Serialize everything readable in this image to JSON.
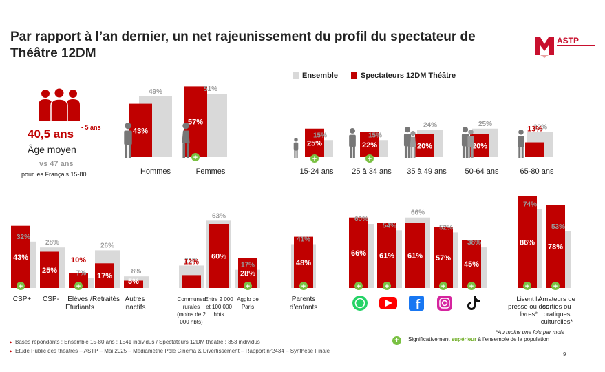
{
  "title": "Par rapport à l’an dernier, un net rajeunissement du profil du spectateur de Théâtre 12DM",
  "logo": {
    "text": "ASTP"
  },
  "legend": {
    "ensemble": "Ensemble",
    "spectateurs": "Spectateurs 12DM Théâtre"
  },
  "colors": {
    "ensemble": "#d9d9d9",
    "spectateurs": "#c00000",
    "positive": "#7ac143",
    "grey_label": "#9a9a9a"
  },
  "age": {
    "value": "40,5 ans",
    "delta": "- 5 ans",
    "label": "Âge moyen",
    "vs": "vs 47 ans",
    "note": "pour les Français 15-80"
  },
  "chart_data": [
    {
      "type": "bar",
      "name": "sexe",
      "categories": [
        "Hommes",
        "Femmes"
      ],
      "series": [
        {
          "name": "Ensemble",
          "values": [
            49,
            51
          ],
          "labels": [
            "49%",
            "51%"
          ]
        },
        {
          "name": "Spectateurs 12DM Théâtre",
          "values": [
            43,
            57
          ],
          "labels": [
            "43%",
            "57%"
          ]
        }
      ],
      "significant": [
        false,
        true
      ]
    },
    {
      "type": "bar",
      "name": "age",
      "categories": [
        "15-24 ans",
        "25 à 34 ans",
        "35 à 49 ans",
        "50-64 ans",
        "65-80 ans"
      ],
      "series": [
        {
          "name": "Ensemble",
          "values": [
            15,
            15,
            24,
            25,
            22
          ],
          "labels": [
            "15%",
            "15%",
            "24%",
            "25%",
            "22%"
          ]
        },
        {
          "name": "Spectateurs 12DM Théâtre",
          "values": [
            25,
            22,
            20,
            20,
            13
          ],
          "labels": [
            "25%",
            "22%",
            "20%",
            "20%",
            "13%"
          ]
        }
      ],
      "significant": [
        true,
        true,
        false,
        false,
        false
      ]
    },
    {
      "type": "bar",
      "name": "csp",
      "categories": [
        "CSP+",
        "CSP-",
        "Elèves / Etudiants",
        "Retraités",
        "Autres inactifs"
      ],
      "series": [
        {
          "name": "Ensemble",
          "values": [
            32,
            28,
            7,
            26,
            8
          ],
          "labels": [
            "32%",
            "28%",
            "7%",
            "26%",
            "8%"
          ]
        },
        {
          "name": "Spectateurs 12DM Théâtre",
          "values": [
            43,
            25,
            10,
            17,
            5
          ],
          "labels": [
            "43%",
            "25%",
            "10%",
            "17%",
            "5%"
          ]
        }
      ],
      "significant": [
        true,
        false,
        true,
        false,
        false
      ]
    },
    {
      "type": "bar",
      "name": "habitat",
      "categories": [
        "Communes rurales (moins de 2 000 hbts)",
        "Entre 2 000 et 100 000 hbts",
        "Agglo de Paris"
      ],
      "series": [
        {
          "name": "Ensemble",
          "values": [
            21,
            63,
            17
          ],
          "labels": [
            "21%",
            "63%",
            "17%"
          ]
        },
        {
          "name": "Spectateurs 12DM Théâtre",
          "values": [
            12,
            60,
            28
          ],
          "labels": [
            "12%",
            "60%",
            "28%"
          ]
        }
      ],
      "significant": [
        false,
        false,
        true
      ]
    },
    {
      "type": "bar",
      "name": "parents",
      "categories": [
        "Parents d’enfants"
      ],
      "series": [
        {
          "name": "Ensemble",
          "values": [
            41
          ],
          "labels": [
            "41%"
          ]
        },
        {
          "name": "Spectateurs 12DM Théâtre",
          "values": [
            48
          ],
          "labels": [
            "48%"
          ]
        }
      ],
      "significant": [
        true
      ]
    },
    {
      "type": "bar",
      "name": "reseaux",
      "categories": [
        "WhatsApp",
        "YouTube",
        "Facebook",
        "Instagram",
        "TikTok"
      ],
      "series": [
        {
          "name": "Ensemble",
          "values": [
            60,
            54,
            66,
            52,
            38
          ],
          "labels": [
            "60%",
            "54%",
            "66%",
            "52%",
            "38%"
          ]
        },
        {
          "name": "Spectateurs 12DM Théâtre",
          "values": [
            66,
            61,
            61,
            57,
            45
          ],
          "labels": [
            "66%",
            "61%",
            "61%",
            "57%",
            "45%"
          ]
        }
      ],
      "significant": [
        true,
        true,
        false,
        true,
        true
      ]
    },
    {
      "type": "bar",
      "name": "pratiques",
      "categories": [
        "Lisent la presse ou des livres*",
        "Amateurs de sorties ou pratiques culturelles*"
      ],
      "series": [
        {
          "name": "Ensemble",
          "values": [
            74,
            53
          ],
          "labels": [
            "74%",
            "53%"
          ]
        },
        {
          "name": "Spectateurs 12DM Théâtre",
          "values": [
            86,
            78
          ],
          "labels": [
            "86%",
            "78%"
          ]
        }
      ],
      "significant": [
        true,
        true
      ]
    }
  ],
  "footnotes": [
    "Bases répondants : Ensemble 15-80 ans : 1541 individus / Spectateurs 12DM théâtre : 353 individus",
    "Etude Public des théâtres – ASTP – Mai 2025 – Médiamétrie Pôle Cinéma & Divertissement – Rapport n°2434 – Synthèse Finale"
  ],
  "significance": {
    "prefix": "Significativement",
    "word": "supérieur",
    "suffix": "à l’ensemble de la population"
  },
  "asterisk_note": "*Au moins une fois par mois",
  "page_number": "9"
}
